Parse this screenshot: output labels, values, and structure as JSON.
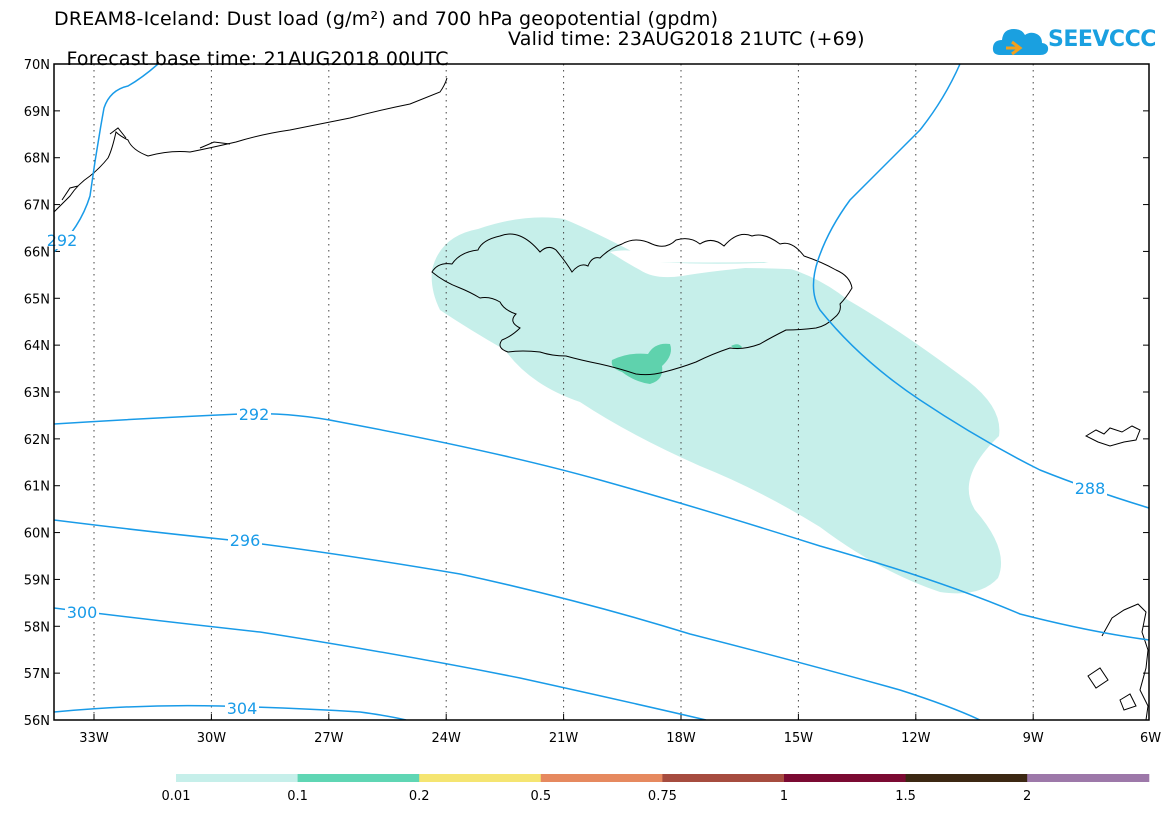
{
  "title": {
    "line1": "DREAM8-Iceland: Dust load (g/m²) and 700 hPa geopotential (gpdm)",
    "line2": "Forecast base time: 21AUG2018 00UTC",
    "valid": "Valid time: 23AUG2018 21UTC (+69)"
  },
  "logo": {
    "text": "SEEVCCC",
    "icon": "cloud-icon"
  },
  "map": {
    "lat_labels": [
      "70N",
      "69N",
      "68N",
      "67N",
      "66N",
      "65N",
      "64N",
      "63N",
      "62N",
      "61N",
      "60N",
      "59N",
      "58N",
      "57N",
      "56N"
    ],
    "lon_labels": [
      "33W",
      "30W",
      "27W",
      "24W",
      "21W",
      "18W",
      "15W",
      "12W",
      "9W",
      "6W"
    ],
    "contour_labels": [
      "292",
      "292",
      "296",
      "300",
      "304",
      "288"
    ],
    "contour_color": "#199be8",
    "dust_colors": {
      "light": "#c6efea",
      "medium": "#5fd2ad"
    }
  },
  "colorbar": {
    "labels": [
      "0.01",
      "0.1",
      "0.2",
      "0.5",
      "0.75",
      "1",
      "1.5",
      "2"
    ],
    "colors": [
      "#c6efea",
      "#5fd6b4",
      "#f5e571",
      "#e6895f",
      "#a64c3f",
      "#7b0a32",
      "#3c2813",
      "#9d78a9"
    ]
  }
}
